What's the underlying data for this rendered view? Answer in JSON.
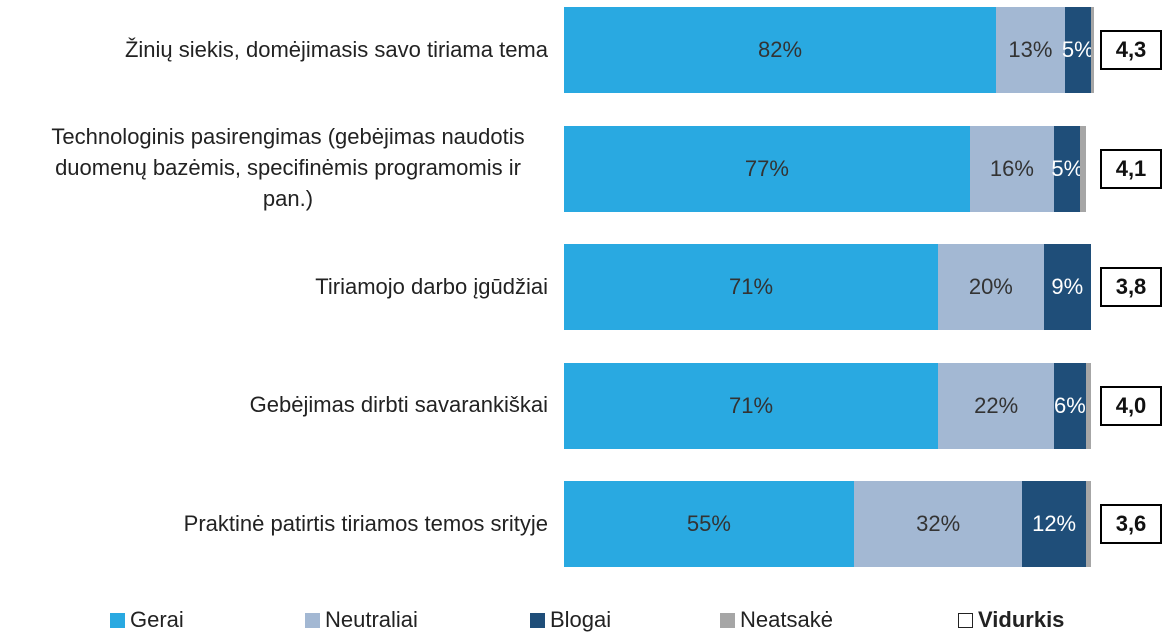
{
  "chart_data": {
    "type": "bar",
    "orientation": "horizontal",
    "stacked": true,
    "categories": [
      "Žinių siekis, domėjimasis savo tiriama tema",
      "Technologinis pasirengimas (gebėjimas naudotis duomenų bazėmis, specifinėmis programomis ir pan.)",
      "Tiriamojo darbo įgūdžiai",
      "Gebėjimas dirbti savarankiškai",
      "Praktinė patirtis tiriamos temos srityje"
    ],
    "series": [
      {
        "name": "Gerai",
        "color": "#29a9e1",
        "values": [
          82,
          77,
          71,
          71,
          55
        ],
        "value_labels": [
          "82%",
          "77%",
          "71%",
          "71%",
          "55%"
        ]
      },
      {
        "name": "Neutraliai",
        "color": "#a3b8d3",
        "values": [
          13,
          16,
          20,
          22,
          32
        ],
        "value_labels": [
          "13%",
          "16%",
          "20%",
          "22%",
          "32%"
        ]
      },
      {
        "name": "Blogai",
        "color": "#1f4e79",
        "values": [
          5,
          5,
          9,
          6,
          12
        ],
        "value_labels": [
          "5%",
          "5%",
          "9%",
          "6%",
          "12%"
        ]
      },
      {
        "name": "Neatsakė",
        "color": "#a6a6a6",
        "values": [
          0.5,
          1,
          0,
          1,
          1
        ]
      }
    ],
    "averages": {
      "name": "Vidurkis",
      "values": [
        4.3,
        4.1,
        3.8,
        4.0,
        3.6
      ],
      "value_labels": [
        "4,3",
        "4,1",
        "3,8",
        "4,0",
        "3,6"
      ]
    },
    "xlim": [
      0,
      100
    ],
    "legend": "bottom"
  }
}
